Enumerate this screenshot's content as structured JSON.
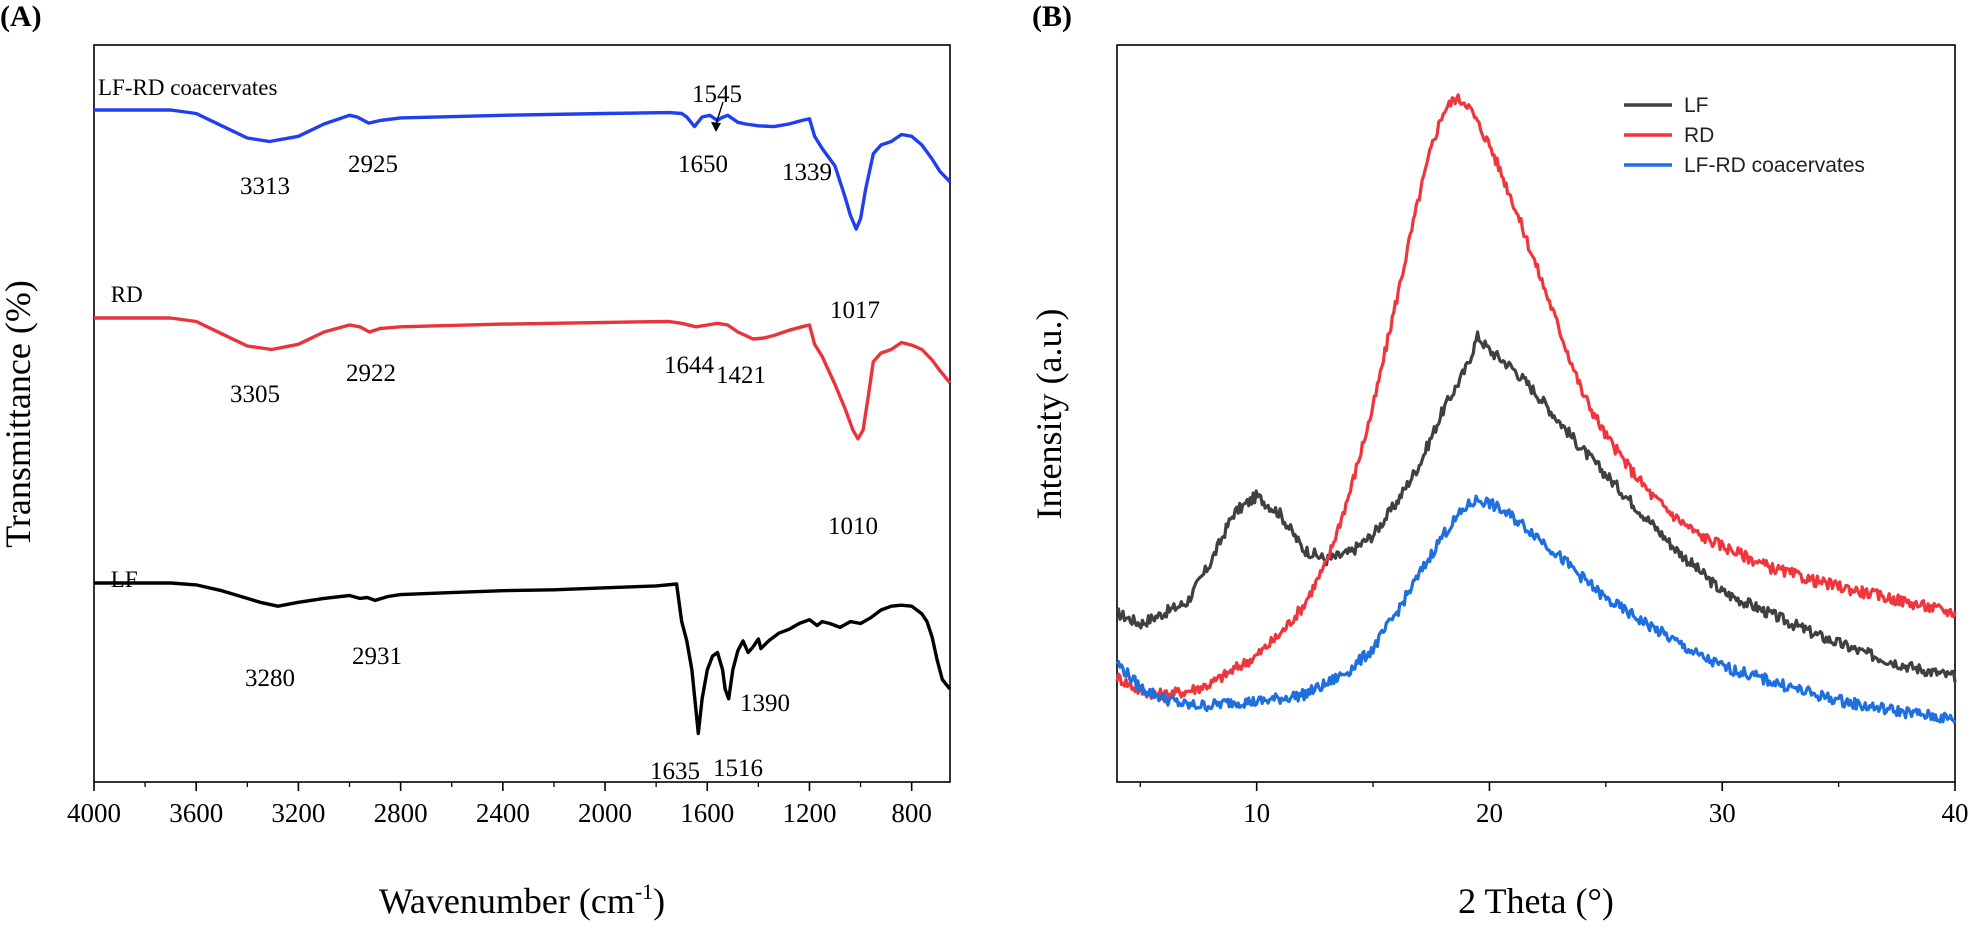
{
  "chart_data": [
    {
      "type": "line",
      "panel_label": "(A)",
      "xlabel": "Wavenumber (cm",
      "xlabel_sup": "-1",
      "xlabel_end": ")",
      "ylabel": "Transmittance (%)",
      "xlim": [
        4000,
        650
      ],
      "x_reversed": true,
      "y_ticks_shown": false,
      "x_ticks": [
        4000,
        3600,
        3200,
        2800,
        2400,
        2000,
        1600,
        1200,
        800
      ],
      "x_tick_labels": [
        "4000",
        "3600",
        "3200",
        "2800",
        "2400",
        "2000",
        "1600",
        "1200",
        "800"
      ],
      "grid": false,
      "series": [
        {
          "name": "LF-RD coacervates",
          "color": "#1f3ff0",
          "x": [
            4000,
            3700,
            3600,
            3500,
            3400,
            3313,
            3200,
            3100,
            3000,
            2970,
            2925,
            2880,
            2800,
            2400,
            2000,
            1750,
            1700,
            1680,
            1650,
            1620,
            1590,
            1560,
            1545,
            1520,
            1480,
            1450,
            1400,
            1339,
            1280,
            1230,
            1200,
            1180,
            1150,
            1100,
            1060,
            1040,
            1017,
            1000,
            980,
            950,
            920,
            880,
            840,
            800,
            760,
            720,
            690,
            650
          ],
          "y": [
            100,
            100,
            98,
            91,
            84,
            82,
            85,
            92,
            97,
            96,
            92.5,
            94,
            95.5,
            97,
            98,
            98.5,
            98,
            96,
            90.5,
            96,
            97,
            94,
            95.5,
            97,
            93,
            92,
            91,
            90.5,
            92,
            94,
            95,
            85,
            78,
            68,
            50,
            40,
            32,
            38,
            55,
            75,
            80,
            82,
            86,
            85,
            80,
            72,
            65,
            59
          ]
        },
        {
          "name": "RD",
          "color": "#e8353b",
          "x": [
            4000,
            3700,
            3600,
            3500,
            3400,
            3305,
            3200,
            3100,
            3000,
            2960,
            2922,
            2880,
            2800,
            2400,
            2000,
            1750,
            1700,
            1644,
            1600,
            1560,
            1520,
            1480,
            1450,
            1421,
            1380,
            1340,
            1280,
            1230,
            1200,
            1180,
            1150,
            1100,
            1060,
            1030,
            1010,
            990,
            970,
            950,
            920,
            880,
            840,
            800,
            760,
            720,
            690,
            650
          ],
          "y": [
            100,
            100,
            98,
            91,
            84,
            82,
            85,
            92,
            96,
            95,
            92,
            94,
            95,
            96.5,
            97.5,
            98,
            97,
            95,
            96,
            97,
            96,
            92,
            90,
            88,
            88.5,
            90,
            93,
            95,
            96,
            85,
            78,
            62,
            48,
            36,
            31,
            36,
            55,
            75,
            80,
            82,
            86,
            84.5,
            82,
            76,
            70,
            63
          ]
        },
        {
          "name": "LF",
          "color": "#000000",
          "x": [
            4000,
            3800,
            3700,
            3600,
            3500,
            3400,
            3350,
            3280,
            3200,
            3100,
            3000,
            2960,
            2931,
            2900,
            2850,
            2800,
            2600,
            2400,
            2200,
            2000,
            1800,
            1720,
            1700,
            1680,
            1660,
            1645,
            1635,
            1620,
            1600,
            1580,
            1560,
            1540,
            1530,
            1516,
            1500,
            1480,
            1460,
            1440,
            1420,
            1400,
            1390,
            1360,
            1320,
            1280,
            1240,
            1200,
            1170,
            1150,
            1120,
            1080,
            1040,
            1000,
            960,
            920,
            880,
            840,
            800,
            760,
            740,
            720,
            700,
            680,
            650
          ],
          "y": [
            100,
            100,
            100,
            99,
            96,
            92,
            90,
            88,
            90,
            92,
            93.5,
            92,
            92.5,
            91,
            93,
            94,
            95,
            96,
            96.5,
            97.5,
            98.5,
            99.5,
            80,
            70,
            55,
            35,
            22,
            40,
            55,
            62,
            64,
            55,
            45,
            40,
            55,
            65,
            70,
            64,
            67,
            71,
            66,
            70,
            74,
            76,
            79,
            81,
            78,
            80,
            79,
            77,
            80,
            79,
            82,
            86,
            88,
            88.5,
            88,
            84,
            80,
            72,
            60,
            50,
            45
          ]
        }
      ],
      "series_labels": [
        {
          "text": "LF-RD coacervates",
          "x": 4000
        },
        {
          "text": "RD",
          "x": 3950
        },
        {
          "text": "LF",
          "x": 3950
        }
      ],
      "annotations": [
        {
          "text": "3313",
          "series": 0
        },
        {
          "text": "2925",
          "series": 0
        },
        {
          "text": "1650",
          "series": 0
        },
        {
          "text": "1545",
          "series": 0
        },
        {
          "text": "1339",
          "series": 0
        },
        {
          "text": "1017",
          "series": 0
        },
        {
          "text": "3305",
          "series": 1
        },
        {
          "text": "2922",
          "series": 1
        },
        {
          "text": "1644",
          "series": 1
        },
        {
          "text": "1421",
          "series": 1
        },
        {
          "text": "1010",
          "series": 1
        },
        {
          "text": "3280",
          "series": 2
        },
        {
          "text": "2931",
          "series": 2
        },
        {
          "text": "1390",
          "series": 2
        },
        {
          "text": "1635",
          "series": 2
        },
        {
          "text": "1516",
          "series": 2
        }
      ]
    },
    {
      "type": "line",
      "panel_label": "(B)",
      "xlabel": "2 Theta (°)",
      "ylabel": "Intensity (a.u.)",
      "xlim": [
        4,
        40
      ],
      "ylim": [
        0,
        1000
      ],
      "y_ticks_shown": false,
      "x_ticks": [
        10,
        20,
        30,
        40
      ],
      "x_tick_labels": [
        "10",
        "20",
        "30",
        "40"
      ],
      "x_minor_ticks": [
        5,
        15,
        25,
        35
      ],
      "grid": false,
      "legend_position": "top-right",
      "legend": [
        "LF",
        "RD",
        "LF-RD coacervates"
      ],
      "series": [
        {
          "name": "LF",
          "color": "#404040",
          "x": [
            4,
            5,
            6,
            7,
            8,
            9,
            10,
            11,
            12,
            13,
            14,
            15,
            16,
            17,
            18,
            19,
            19.5,
            20,
            21,
            22,
            23,
            24,
            25,
            26,
            27,
            28,
            29,
            30,
            32,
            34,
            36,
            38,
            40
          ],
          "y": [
            190,
            175,
            190,
            205,
            260,
            330,
            355,
            330,
            280,
            265,
            275,
            300,
            345,
            400,
            475,
            535,
            580,
            560,
            535,
            500,
            460,
            420,
            385,
            350,
            315,
            280,
            250,
            220,
            190,
            160,
            135,
            115,
            100
          ]
        },
        {
          "name": "RD",
          "color": "#f0363c",
          "x": [
            4,
            5,
            6,
            7,
            8,
            9,
            10,
            11,
            12,
            13,
            14,
            15,
            16,
            17,
            17.5,
            18,
            18.5,
            19,
            19.5,
            20,
            21,
            22,
            23,
            24,
            25,
            26,
            27,
            28,
            29,
            30,
            32,
            34,
            36,
            38,
            40
          ],
          "y": [
            100,
            80,
            75,
            80,
            90,
            110,
            130,
            160,
            200,
            260,
            360,
            480,
            630,
            780,
            845,
            895,
            915,
            910,
            880,
            850,
            770,
            680,
            590,
            500,
            440,
            395,
            355,
            325,
            300,
            285,
            255,
            235,
            220,
            205,
            190
          ]
        },
        {
          "name": "LF-RD coacervates",
          "color": "#1e6fe0",
          "x": [
            4,
            5,
            6,
            7,
            8,
            9,
            10,
            11,
            12,
            13,
            14,
            15,
            16,
            17,
            18,
            19,
            19.5,
            20,
            21,
            22,
            23,
            24,
            25,
            26,
            27,
            28,
            29,
            30,
            32,
            34,
            36,
            38,
            40
          ],
          "y": [
            120,
            85,
            70,
            60,
            60,
            65,
            65,
            70,
            75,
            90,
            110,
            140,
            190,
            245,
            300,
            340,
            350,
            345,
            325,
            300,
            270,
            240,
            210,
            190,
            170,
            150,
            130,
            115,
            95,
            75,
            60,
            50,
            40
          ]
        }
      ]
    }
  ]
}
